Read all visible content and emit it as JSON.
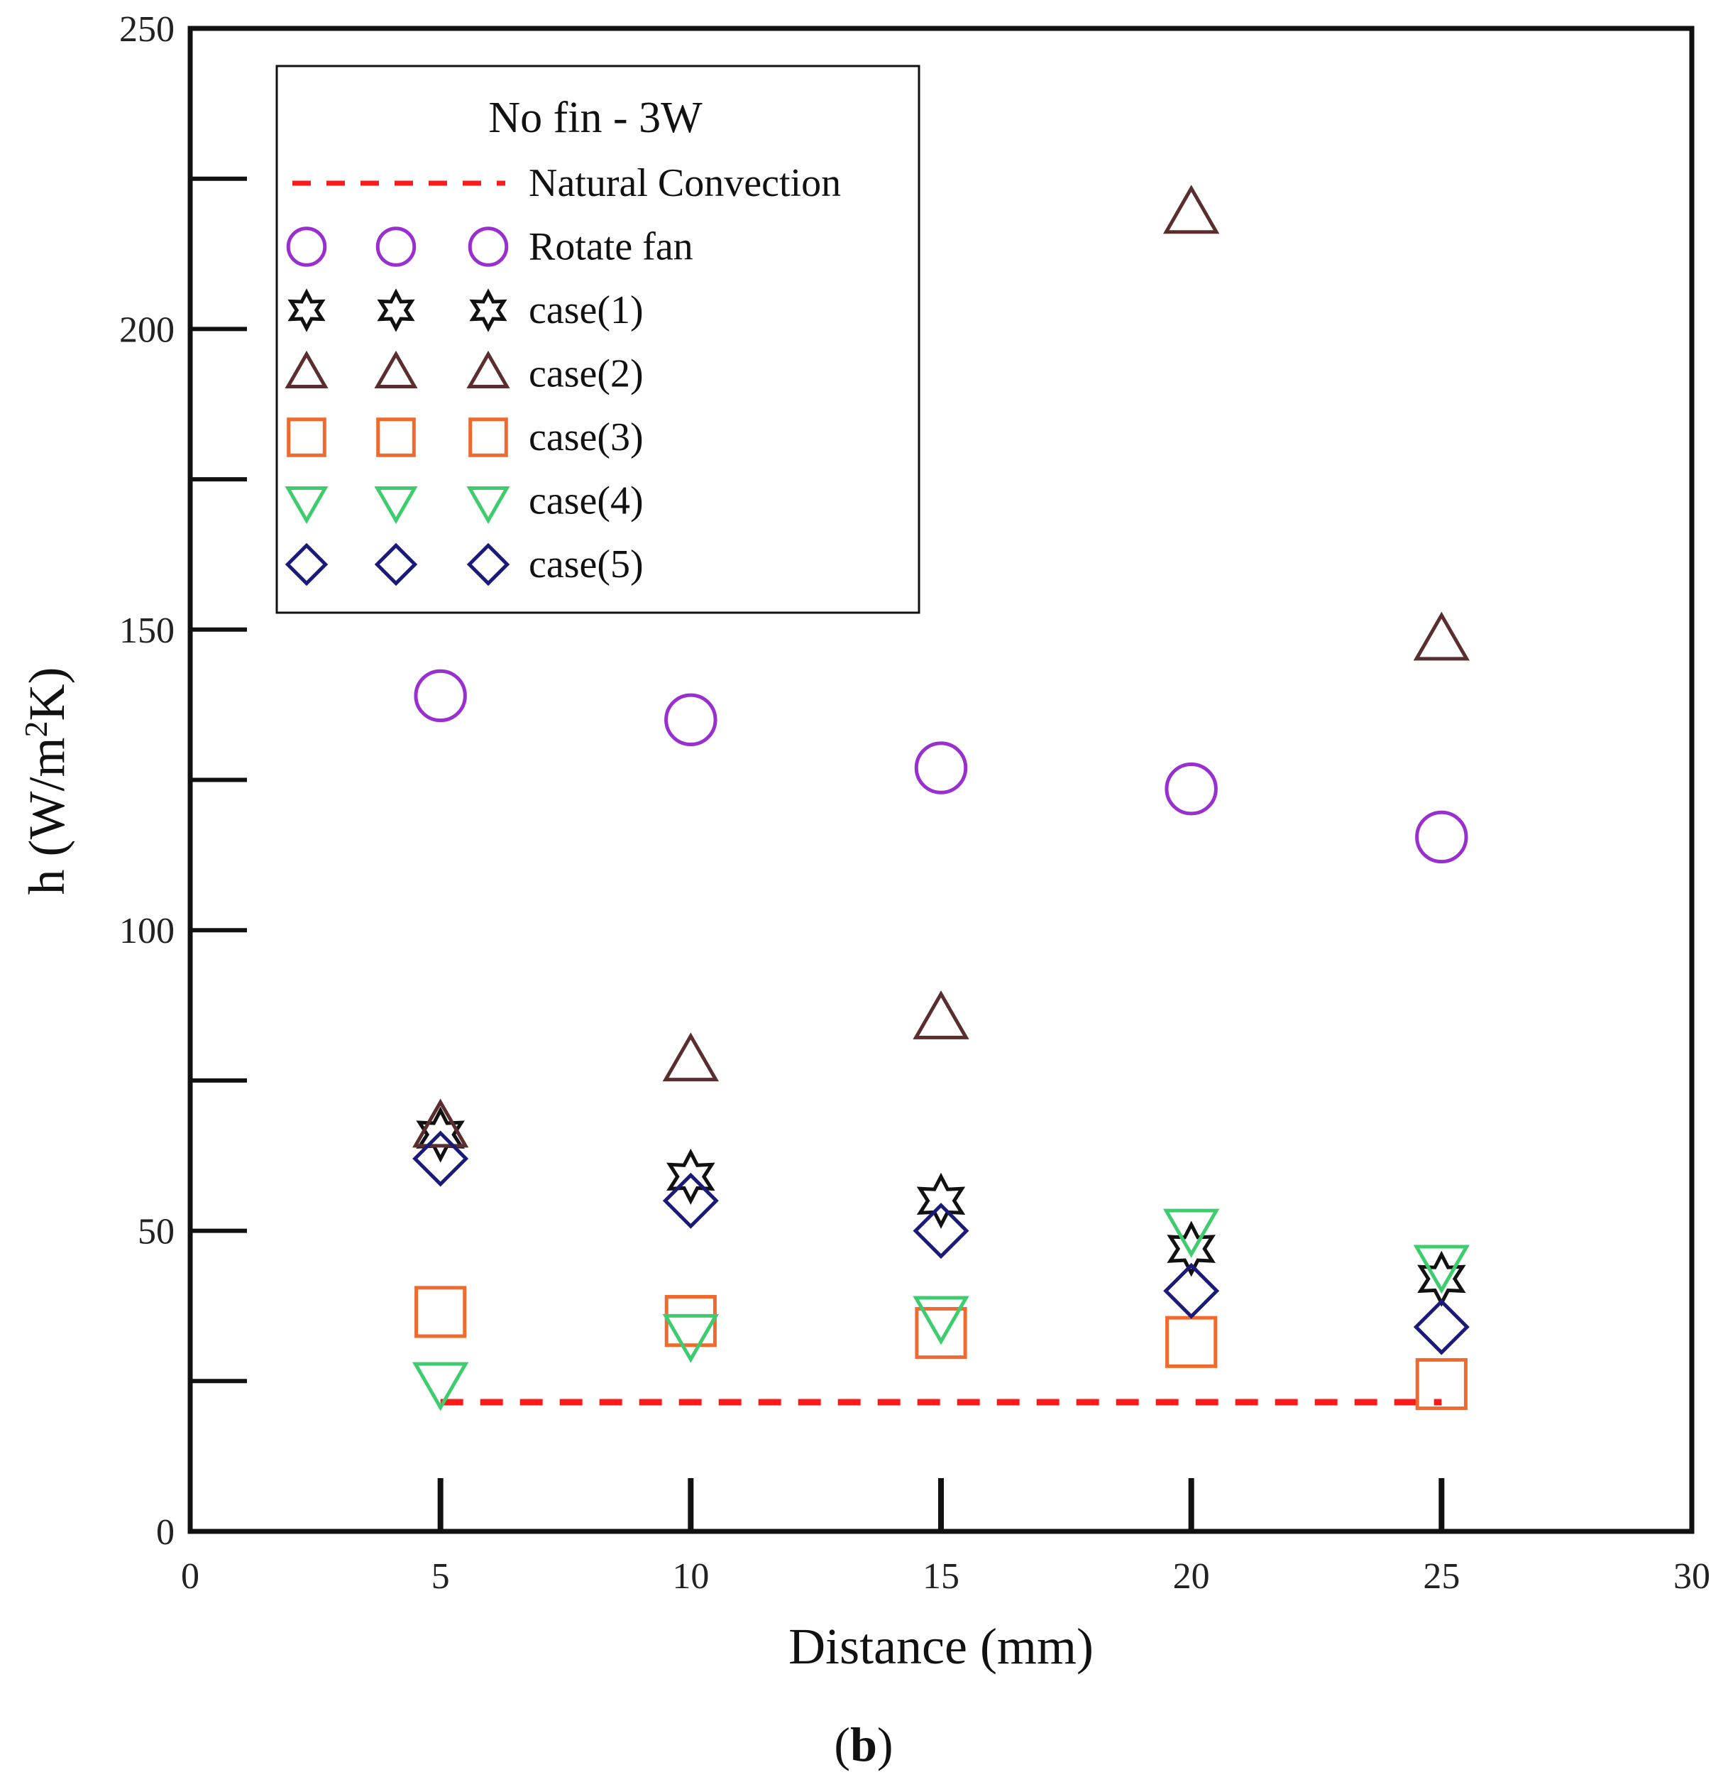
{
  "chart_data": {
    "type": "scatter",
    "title": "No fin - 3W",
    "panel_label": "b",
    "xlabel": "Distance (mm)",
    "ylabel_main": "h (W/m",
    "ylabel_sup": "2",
    "ylabel_tail": "K)",
    "xlim": [
      0,
      30
    ],
    "ylim": [
      0,
      250
    ],
    "x_ticks": [
      0,
      5,
      10,
      15,
      20,
      25,
      30
    ],
    "y_ticks": [
      0,
      50,
      100,
      150,
      200,
      250
    ],
    "grid": false,
    "legend_position": "top-left",
    "reference_line": {
      "name": "Natural Convection",
      "value": 21.5,
      "x_range": [
        5,
        25
      ],
      "color": "#ff1a1a"
    },
    "series": [
      {
        "name": "Rotate fan",
        "marker": "circle",
        "color": "#9a2fd0",
        "x": [
          5,
          10,
          15,
          20,
          25
        ],
        "y": [
          139,
          135,
          127,
          123.5,
          115.5
        ]
      },
      {
        "name": "case(1)",
        "marker": "star",
        "color": "#111111",
        "x": [
          5,
          10,
          15,
          20,
          25
        ],
        "y": [
          66,
          59,
          55,
          47,
          42
        ]
      },
      {
        "name": "case(2)",
        "marker": "triangle-up",
        "color": "#5a2e2e",
        "x": [
          5,
          10,
          15,
          20,
          25
        ],
        "y": [
          67,
          78,
          85,
          219,
          148
        ]
      },
      {
        "name": "case(3)",
        "marker": "square",
        "color": "#f06a2e",
        "x": [
          5,
          10,
          15,
          20,
          25
        ],
        "y": [
          36.5,
          35,
          33,
          31.5,
          24.5
        ]
      },
      {
        "name": "case(4)",
        "marker": "triangle-down",
        "color": "#3dcc6e",
        "x": [
          5,
          10,
          15,
          20,
          25
        ],
        "y": [
          25,
          33,
          36,
          50.5,
          44.5
        ]
      },
      {
        "name": "case(5)",
        "marker": "diamond",
        "color": "#1a1a7a",
        "x": [
          5,
          10,
          15,
          20,
          25
        ],
        "y": [
          62,
          55,
          50,
          40,
          34
        ]
      }
    ]
  }
}
